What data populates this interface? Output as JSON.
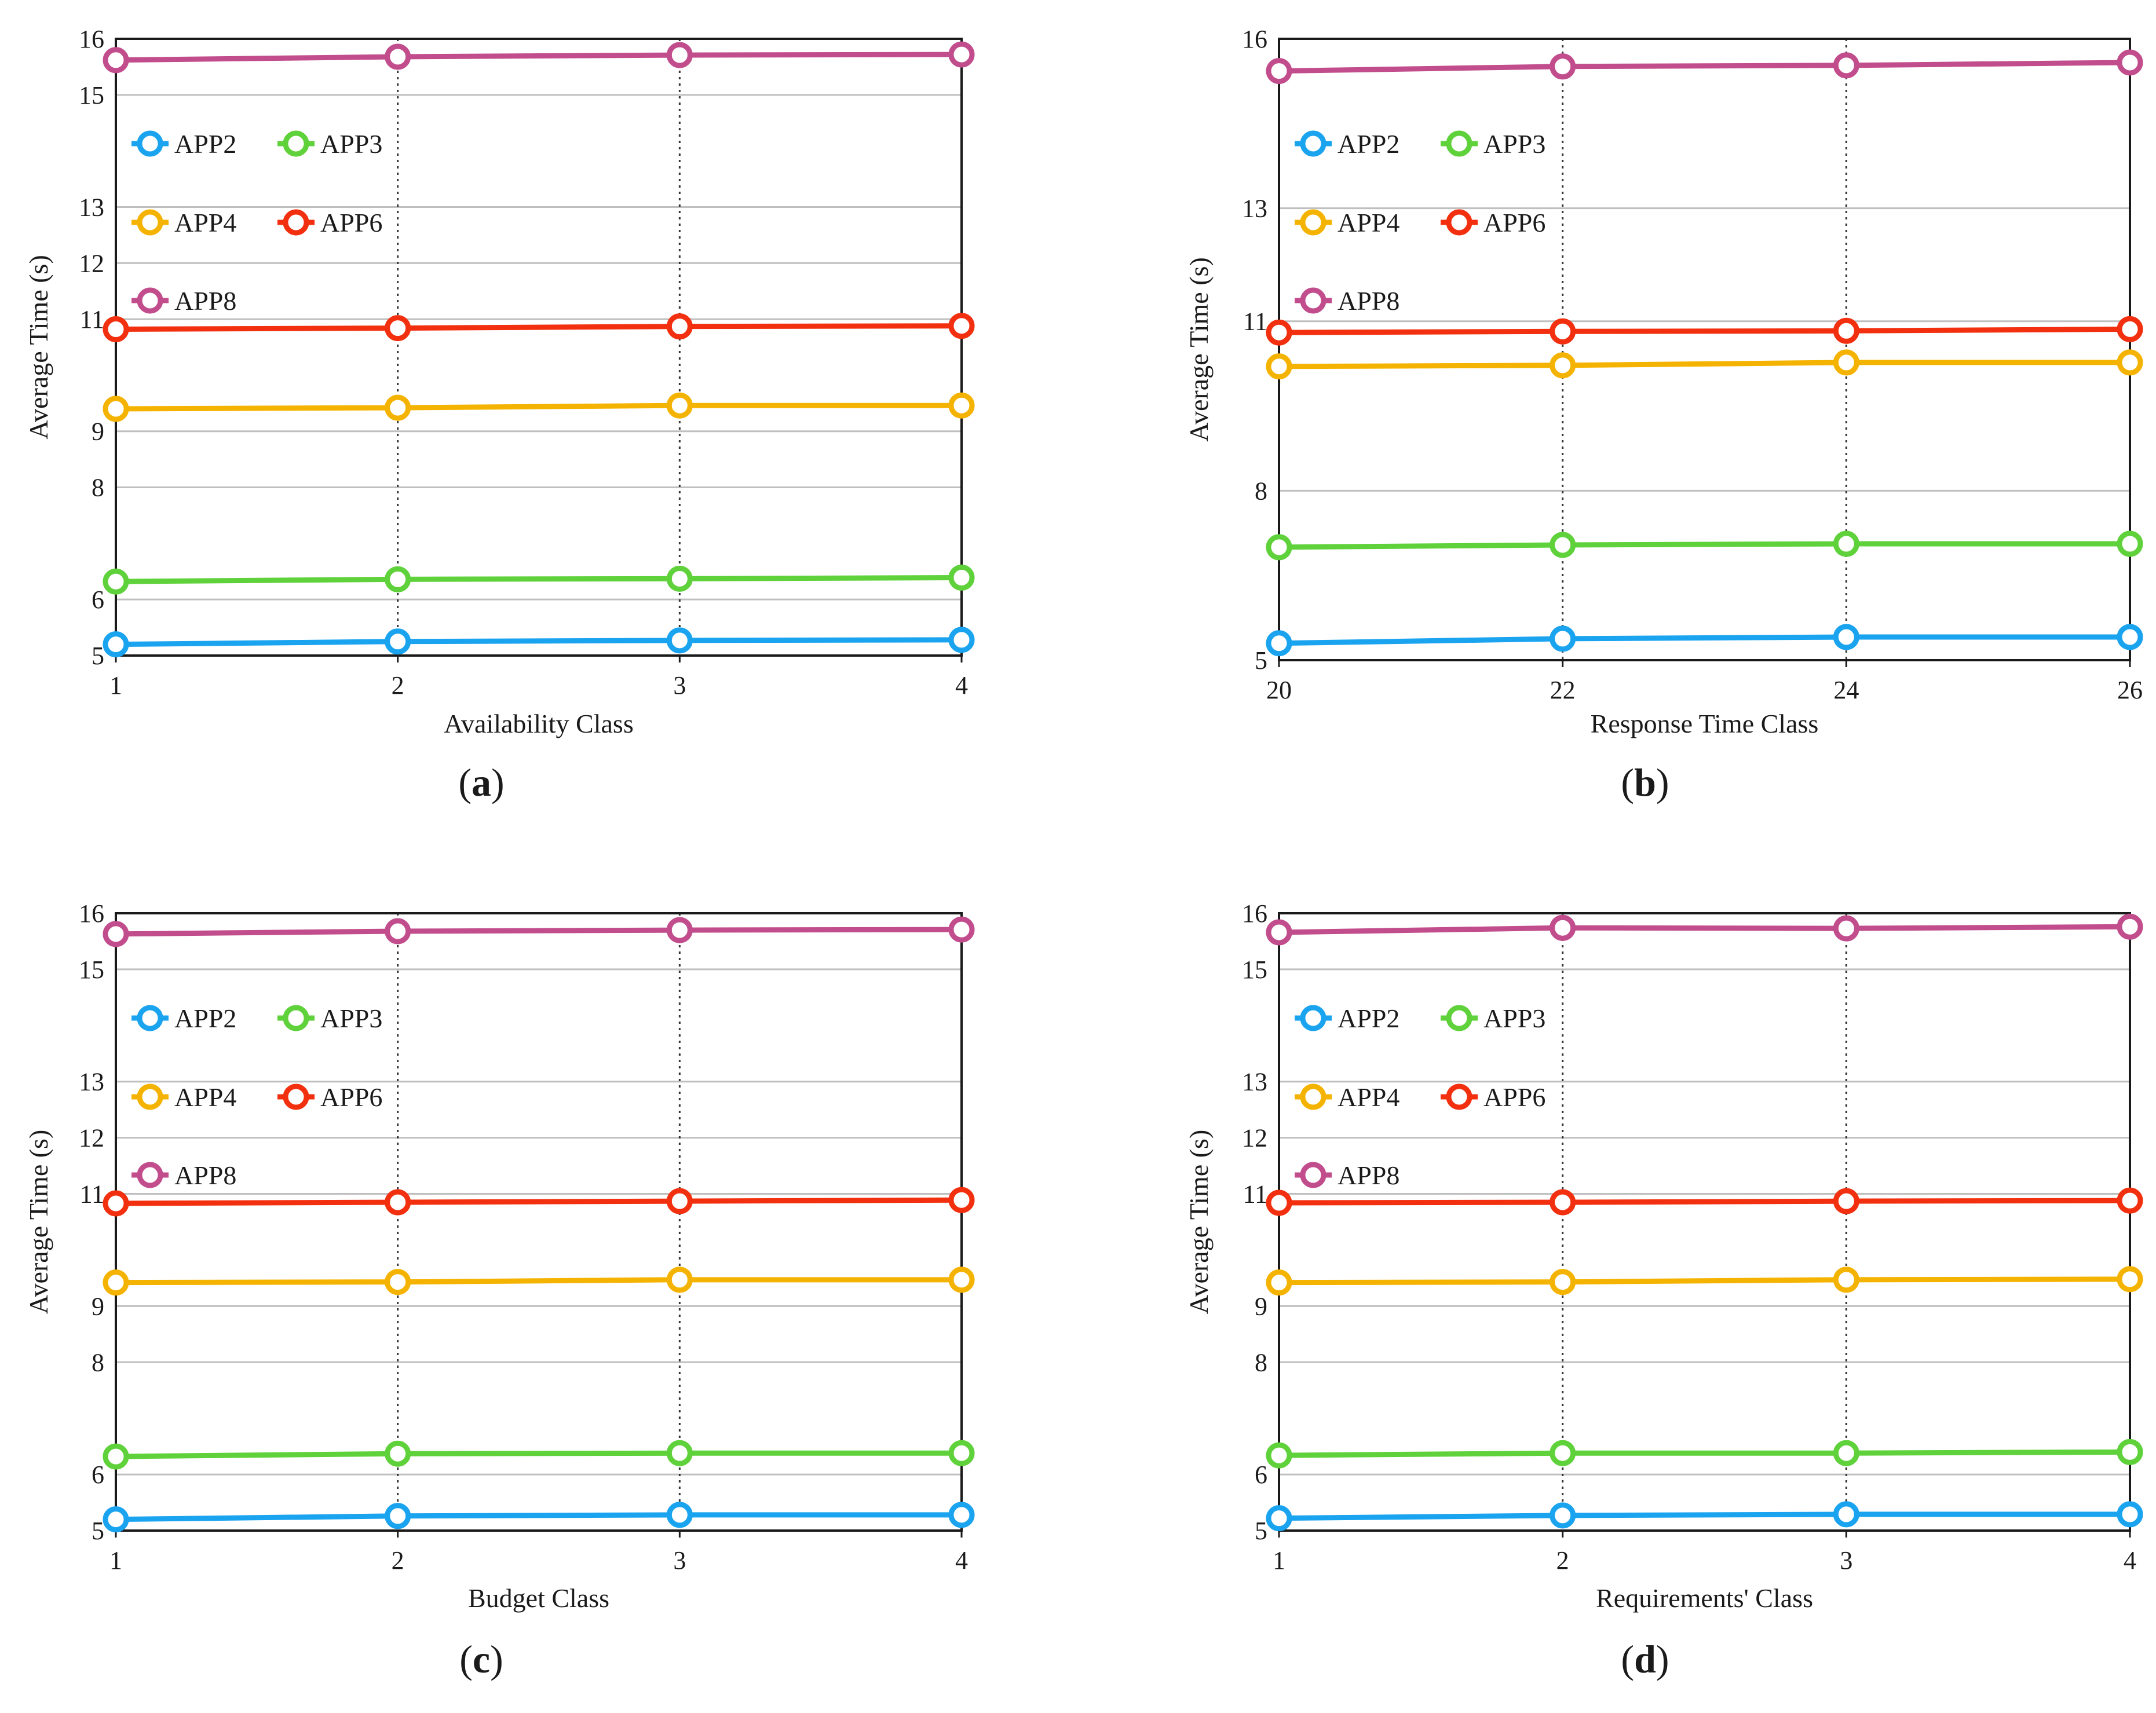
{
  "colors": {
    "APP2": "#1aa3ef",
    "APP3": "#5fd13a",
    "APP4": "#f5b301",
    "APP6": "#f2300f",
    "APP8": "#c24d8d",
    "grid": "#bfbfbf",
    "axis": "#1a1a1a"
  },
  "chart_data": [
    {
      "id": "a",
      "type": "line",
      "caption": {
        "open": "(",
        "letter": "a",
        "close": ")"
      },
      "xlabel": "Availability Class",
      "ylabel": "Average Time (s)",
      "x": [
        1,
        2,
        3,
        4
      ],
      "x_tick_labels": [
        "1",
        "2",
        "3",
        "4"
      ],
      "y_tick_values": [
        5,
        6,
        8,
        9,
        11,
        12,
        13,
        15,
        16
      ],
      "y_tick_labels": [
        "5",
        "6",
        "8",
        "9",
        "11",
        "12",
        "13",
        "15",
        "16"
      ],
      "ylim": [
        5,
        16
      ],
      "grid": true,
      "legend": [
        "APP2",
        "APP3",
        "APP4",
        "APP6",
        "APP8"
      ],
      "series": [
        {
          "name": "APP2",
          "values": [
            5.2,
            5.25,
            5.27,
            5.28
          ]
        },
        {
          "name": "APP3",
          "values": [
            6.32,
            6.36,
            6.37,
            6.39
          ]
        },
        {
          "name": "APP4",
          "values": [
            9.4,
            9.42,
            9.46,
            9.46
          ]
        },
        {
          "name": "APP6",
          "values": [
            10.82,
            10.84,
            10.87,
            10.88
          ]
        },
        {
          "name": "APP8",
          "values": [
            15.62,
            15.68,
            15.71,
            15.72
          ]
        }
      ]
    },
    {
      "id": "b",
      "type": "line",
      "caption": {
        "open": "(",
        "letter": "b",
        "close": ")"
      },
      "xlabel": "Response Time Class",
      "ylabel": "Average Time (s)",
      "x": [
        20,
        22,
        24,
        26
      ],
      "x_tick_labels": [
        "20",
        "22",
        "24",
        "26"
      ],
      "y_tick_values": [
        5,
        8,
        11,
        13,
        16
      ],
      "y_tick_labels": [
        "5",
        "8",
        "11",
        "13",
        "16"
      ],
      "ylim": [
        5,
        16
      ],
      "grid": true,
      "legend": [
        "APP2",
        "APP3",
        "APP4",
        "APP6",
        "APP8"
      ],
      "series": [
        {
          "name": "APP2",
          "values": [
            5.3,
            5.38,
            5.41,
            5.41
          ]
        },
        {
          "name": "APP3",
          "values": [
            7.0,
            7.04,
            7.06,
            7.06
          ]
        },
        {
          "name": "APP4",
          "values": [
            10.2,
            10.22,
            10.27,
            10.27
          ]
        },
        {
          "name": "APP6",
          "values": [
            10.8,
            10.82,
            10.83,
            10.86
          ]
        },
        {
          "name": "APP8",
          "values": [
            15.43,
            15.51,
            15.53,
            15.58
          ]
        }
      ]
    },
    {
      "id": "c",
      "type": "line",
      "caption": {
        "open": "(",
        "letter": "c",
        "close": ")"
      },
      "xlabel": "Budget Class",
      "ylabel": "Average Time (s)",
      "x": [
        1,
        2,
        3,
        4
      ],
      "x_tick_labels": [
        "1",
        "2",
        "3",
        "4"
      ],
      "y_tick_values": [
        5,
        6,
        8,
        9,
        11,
        12,
        13,
        15,
        16
      ],
      "y_tick_labels": [
        "5",
        "6",
        "8",
        "9",
        "11",
        "12",
        "13",
        "15",
        "16"
      ],
      "ylim": [
        5,
        16
      ],
      "grid": true,
      "legend": [
        "APP2",
        "APP3",
        "APP4",
        "APP6",
        "APP8"
      ],
      "series": [
        {
          "name": "APP2",
          "values": [
            5.2,
            5.26,
            5.28,
            5.28
          ]
        },
        {
          "name": "APP3",
          "values": [
            6.32,
            6.37,
            6.38,
            6.38
          ]
        },
        {
          "name": "APP4",
          "values": [
            9.42,
            9.43,
            9.47,
            9.47
          ]
        },
        {
          "name": "APP6",
          "values": [
            10.83,
            10.85,
            10.87,
            10.89
          ]
        },
        {
          "name": "APP8",
          "values": [
            15.63,
            15.68,
            15.7,
            15.71
          ]
        }
      ]
    },
    {
      "id": "d",
      "type": "line",
      "caption": {
        "open": "(",
        "letter": "d",
        "close": ")"
      },
      "xlabel": "Requirements' Class",
      "ylabel": "Average Time (s)",
      "x": [
        1,
        2,
        3,
        4
      ],
      "x_tick_labels": [
        "1",
        "2",
        "3",
        "4"
      ],
      "y_tick_values": [
        5,
        6,
        8,
        9,
        11,
        12,
        13,
        15,
        16
      ],
      "y_tick_labels": [
        "5",
        "6",
        "8",
        "9",
        "11",
        "12",
        "13",
        "15",
        "16"
      ],
      "ylim": [
        5,
        16
      ],
      "grid": true,
      "legend": [
        "APP2",
        "APP3",
        "APP4",
        "APP6",
        "APP8"
      ],
      "series": [
        {
          "name": "APP2",
          "values": [
            5.22,
            5.27,
            5.29,
            5.29
          ]
        },
        {
          "name": "APP3",
          "values": [
            6.34,
            6.38,
            6.38,
            6.4
          ]
        },
        {
          "name": "APP4",
          "values": [
            9.42,
            9.43,
            9.47,
            9.48
          ]
        },
        {
          "name": "APP6",
          "values": [
            10.84,
            10.85,
            10.87,
            10.88
          ]
        },
        {
          "name": "APP8",
          "values": [
            15.66,
            15.74,
            15.73,
            15.76
          ]
        }
      ]
    }
  ]
}
